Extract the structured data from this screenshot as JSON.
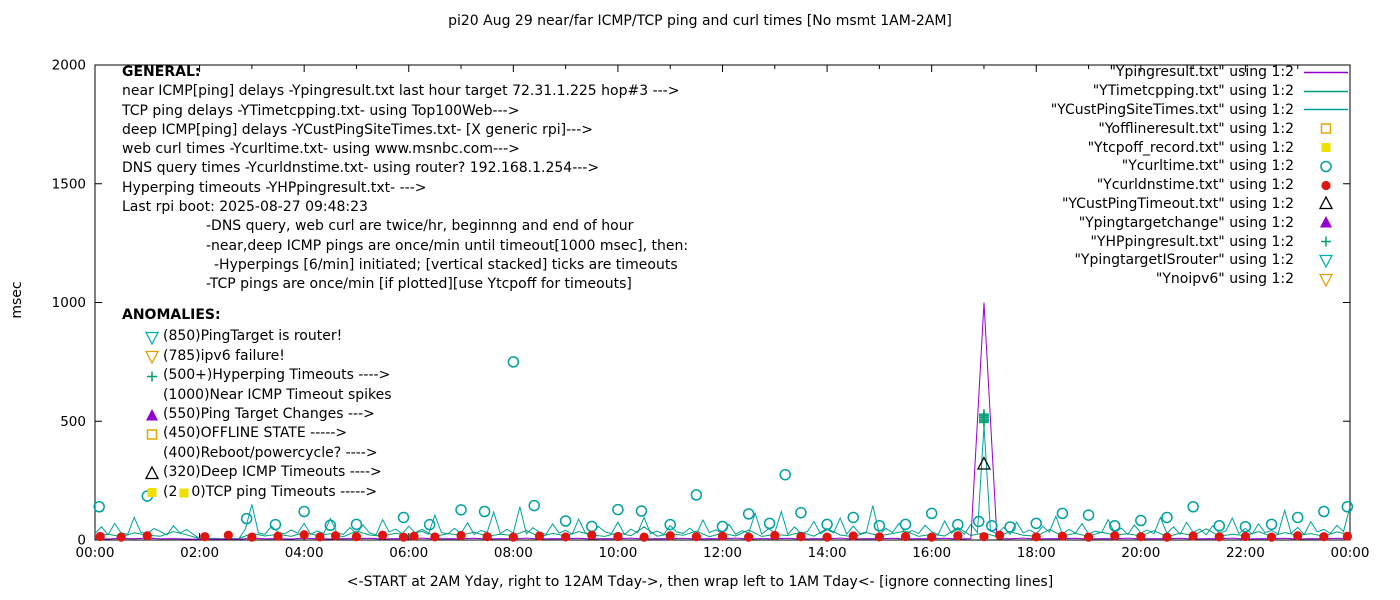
{
  "chart_data": {
    "type": "line",
    "title": "pi20 Aug 29  near/far ICMP/TCP ping and curl times [No msmt 1AM-2AM]",
    "xlabel": "<-START at 2AM Yday, right to 12AM Tday->, then wrap left to 1AM Tday<- [ignore connecting lines]",
    "ylabel": "msec",
    "xlim": [
      0,
      24
    ],
    "ylim": [
      0,
      2000
    ],
    "grid": false,
    "legend_position": "top-right",
    "x_tick_labels": [
      "00:00",
      "02:00",
      "04:00",
      "06:00",
      "08:00",
      "10:00",
      "12:00",
      "14:00",
      "16:00",
      "18:00",
      "20:00",
      "22:00",
      "00:00"
    ],
    "y_ticks": [
      0,
      500,
      1000,
      1500,
      2000
    ],
    "series": [
      {
        "name": "YCustPingSiteTimes.txt",
        "type": "line",
        "color": "#00a0a0",
        "values": [
          28,
          55,
          22,
          70,
          30,
          24,
          95,
          33,
          26,
          48,
          36,
          21,
          60,
          29,
          44,
          25,
          6,
          4,
          7,
          5,
          4,
          6,
          5,
          45,
          150,
          30,
          24,
          58,
          33,
          26,
          42,
          29,
          70,
          25,
          38,
          28,
          90,
          31,
          23,
          52,
          27,
          64,
          30,
          22,
          86,
          34,
          46,
          26,
          58,
          29,
          37,
          24,
          105,
          31,
          26,
          49,
          28,
          73,
          23,
          40,
          32,
          118,
          27,
          45,
          30,
          140,
          26,
          52,
          33,
          24,
          68,
          29,
          41,
          25,
          88,
          31,
          22,
          57,
          35,
          27,
          75,
          24,
          46,
          30,
          95,
          26,
          38,
          23,
          61,
          34,
          28,
          50,
          25,
          84,
          31,
          43,
          27,
          66,
          24,
          39,
          29,
          112,
          25,
          47,
          32,
          120,
          23,
          55,
          28,
          36,
          78,
          26,
          44,
          30,
          92,
          25,
          58,
          27,
          33,
          145,
          24,
          49,
          31,
          70,
          26,
          40,
          28,
          62,
          35,
          23,
          80,
          29,
          47,
          25,
          66,
          31,
          480,
          38,
          27,
          53,
          24,
          75,
          30,
          42,
          26,
          58,
          33,
          100,
          24,
          45,
          29,
          69,
          25,
          37,
          31,
          86,
          27,
          51,
          23,
          63,
          30,
          42,
          26,
          95,
          28,
          55,
          24,
          74,
          32,
          46,
          22,
          60,
          29,
          38,
          92,
          27,
          49,
          25,
          68,
          31,
          40,
          26,
          125,
          29,
          53,
          23,
          77,
          34,
          45,
          28,
          62,
          36,
          140
        ]
      },
      {
        "name": "YTimetcpping.txt",
        "type": "line",
        "color": "#009e73",
        "values": [
          18,
          25,
          14,
          30,
          20,
          16,
          35,
          22,
          6,
          4,
          5,
          6,
          28,
          17,
          24,
          15,
          32,
          19,
          26,
          14,
          38,
          21,
          16,
          29,
          18,
          45,
          15,
          27,
          20,
          33,
          16,
          24,
          19,
          40,
          14,
          28,
          17,
          35,
          21,
          15,
          30,
          18,
          55,
          16,
          26,
          20,
          37,
          14,
          29,
          17,
          42,
          15,
          23,
          19,
          33,
          16,
          48,
          21,
          14,
          31,
          18,
          27,
          38,
          15,
          24,
          17,
          52,
          19,
          30,
          14,
          35,
          20,
          16,
          44,
          18,
          28,
          15,
          33,
          21,
          26,
          17,
          39,
          14,
          29,
          19,
          47,
          16,
          24,
          18,
          36,
          15,
          31,
          20,
          27,
          16,
          34,
          22
        ]
      },
      {
        "name": "Ypingresult.txt",
        "type": "line",
        "color": "#9400d3",
        "values": [
          6,
          4,
          7,
          5,
          8,
          5,
          6,
          4,
          3,
          3,
          4,
          3,
          7,
          5,
          6,
          4,
          8,
          5,
          4,
          6,
          5,
          7,
          4,
          6,
          5,
          8,
          4,
          6,
          5,
          7,
          4,
          6,
          5,
          8,
          4,
          6,
          5,
          7,
          4,
          6,
          5,
          8,
          4,
          6,
          5,
          7,
          4,
          6,
          5,
          8,
          4,
          6,
          5,
          7,
          4,
          6,
          5,
          8,
          4,
          6,
          5,
          7,
          4,
          6,
          5,
          7,
          4,
          6,
          1000,
          6,
          5,
          8,
          4,
          6,
          5,
          7,
          4,
          6,
          5,
          8,
          4,
          6,
          5,
          7,
          4,
          6,
          5,
          8,
          4,
          6,
          5,
          7,
          4,
          6,
          5,
          7,
          5
        ]
      },
      {
        "name": "Ycurltime.txt",
        "type": "scatter",
        "marker": "circle-open",
        "color": "#00a0a0",
        "points": [
          [
            0.08,
            140
          ],
          [
            1.0,
            185
          ],
          [
            2.9,
            90
          ],
          [
            3.45,
            65
          ],
          [
            4.0,
            120
          ],
          [
            4.5,
            62
          ],
          [
            5.0,
            66
          ],
          [
            5.9,
            95
          ],
          [
            6.4,
            65
          ],
          [
            7.0,
            127
          ],
          [
            7.45,
            120
          ],
          [
            8.0,
            750
          ],
          [
            8.4,
            145
          ],
          [
            9.0,
            80
          ],
          [
            9.5,
            57
          ],
          [
            10.0,
            128
          ],
          [
            10.45,
            122
          ],
          [
            11.0,
            65
          ],
          [
            11.5,
            190
          ],
          [
            12.0,
            57
          ],
          [
            12.5,
            110
          ],
          [
            12.9,
            70
          ],
          [
            13.2,
            275
          ],
          [
            13.5,
            115
          ],
          [
            14.0,
            66
          ],
          [
            14.5,
            95
          ],
          [
            15.0,
            60
          ],
          [
            15.5,
            66
          ],
          [
            16.0,
            112
          ],
          [
            16.5,
            65
          ],
          [
            16.9,
            78
          ],
          [
            17.15,
            60
          ],
          [
            17.5,
            55
          ],
          [
            18.0,
            70
          ],
          [
            18.5,
            112
          ],
          [
            19.0,
            105
          ],
          [
            19.5,
            60
          ],
          [
            20.0,
            82
          ],
          [
            20.5,
            95
          ],
          [
            21.0,
            140
          ],
          [
            21.5,
            60
          ],
          [
            22.0,
            56
          ],
          [
            22.5,
            66
          ],
          [
            23.0,
            95
          ],
          [
            23.5,
            120
          ],
          [
            23.95,
            140
          ]
        ]
      },
      {
        "name": "Ycurldnstime.txt",
        "type": "scatter",
        "marker": "circle-filled",
        "color": "#e01510",
        "points": [
          [
            0.1,
            15
          ],
          [
            0.5,
            12
          ],
          [
            1.0,
            18
          ],
          [
            2.1,
            14
          ],
          [
            2.55,
            20
          ],
          [
            3.0,
            12
          ],
          [
            3.5,
            16
          ],
          [
            4.0,
            22
          ],
          [
            4.3,
            13
          ],
          [
            4.6,
            18
          ],
          [
            5.0,
            14
          ],
          [
            5.5,
            20
          ],
          [
            5.9,
            12
          ],
          [
            6.1,
            16
          ],
          [
            6.5,
            13
          ],
          [
            7.0,
            19
          ],
          [
            7.5,
            14
          ],
          [
            8.0,
            12
          ],
          [
            8.5,
            17
          ],
          [
            9.0,
            13
          ],
          [
            9.5,
            20
          ],
          [
            10.0,
            15
          ],
          [
            10.5,
            12
          ],
          [
            11.0,
            18
          ],
          [
            11.5,
            14
          ],
          [
            12.0,
            16
          ],
          [
            12.5,
            12
          ],
          [
            13.0,
            19
          ],
          [
            13.5,
            14
          ],
          [
            14.0,
            12
          ],
          [
            14.5,
            17
          ],
          [
            15.0,
            13
          ],
          [
            15.5,
            15
          ],
          [
            16.0,
            12
          ],
          [
            16.5,
            18
          ],
          [
            17.0,
            14
          ],
          [
            17.3,
            20
          ],
          [
            18.0,
            13
          ],
          [
            18.5,
            16
          ],
          [
            19.0,
            12
          ],
          [
            19.5,
            18
          ],
          [
            20.0,
            14
          ],
          [
            20.5,
            12
          ],
          [
            21.0,
            17
          ],
          [
            21.5,
            13
          ],
          [
            22.0,
            15
          ],
          [
            22.5,
            12
          ],
          [
            23.0,
            18
          ],
          [
            23.5,
            14
          ],
          [
            23.95,
            16
          ]
        ]
      },
      {
        "name": "YCustPingTimeout.txt",
        "type": "scatter",
        "marker": "triangle-up-open",
        "color": "#000000",
        "points": [
          [
            17.0,
            320
          ]
        ]
      },
      {
        "name": "YHPpingresult.txt",
        "type": "scatter",
        "marker": "plus",
        "color": "#009e73",
        "points": [
          [
            17.0,
            495
          ],
          [
            17.0,
            502
          ],
          [
            17.0,
            509
          ],
          [
            17.0,
            516
          ],
          [
            17.0,
            523
          ],
          [
            17.0,
            530
          ]
        ]
      }
    ]
  },
  "legend": [
    {
      "label": "\"Ypingresult.txt\" using 1:2",
      "sample": "line",
      "color": "#9400d3"
    },
    {
      "label": "\"YTimetcpping.txt\" using 1:2",
      "sample": "line",
      "color": "#009e73"
    },
    {
      "label": "\"YCustPingSiteTimes.txt\" using 1:2",
      "sample": "line",
      "color": "#00a0a0"
    },
    {
      "label": "\"Yofflineresult.txt\" using 1:2",
      "sample": "square-open",
      "color": "#e0a800"
    },
    {
      "label": "\"Ytcpoff_record.txt\" using 1:2",
      "sample": "square-filled",
      "color": "#efe000"
    },
    {
      "label": "\"Ycurltime.txt\" using 1:2",
      "sample": "circle-open",
      "color": "#00a0a0"
    },
    {
      "label": "\"Ycurldnstime.txt\" using 1:2",
      "sample": "circle-filled",
      "color": "#e01510"
    },
    {
      "label": "\"YCustPingTimeout.txt\" using 1:2",
      "sample": "triangle-up-open",
      "color": "#000000"
    },
    {
      "label": "\"Ypingtargetchange\" using 1:2",
      "sample": "triangle-up-filled",
      "color": "#9400d3"
    },
    {
      "label": "\"YHPpingresult.txt\" using 1:2",
      "sample": "plus",
      "color": "#009e73"
    },
    {
      "label": "\"YpingtargetISrouter\" using 1:2",
      "sample": "triangle-down-open",
      "color": "#00b0b0"
    },
    {
      "label": "\"Ynoipv6\" using 1:2",
      "sample": "triangle-down-open",
      "color": "#e69f00"
    }
  ],
  "general": {
    "heading": "GENERAL:",
    "lines": [
      {
        "text": "near ICMP[ping] delays -Ypingresult.txt last hour target 72.31.1.225 hop#3 --->",
        "indent": 0
      },
      {
        "text": "TCP ping delays -YTimetcpping.txt- using Top100Web--->",
        "indent": 0
      },
      {
        "text": "deep ICMP[ping] delays -YCustPingSiteTimes.txt- [X generic rpi]--->",
        "indent": 0
      },
      {
        "text": "web curl times -Ycurltime.txt- using www.msnbc.com--->",
        "indent": 0
      },
      {
        "text": "DNS query times -Ycurldnstime.txt- using router? 192.168.1.254--->",
        "indent": 0
      },
      {
        "text": "Hyperping timeouts -YHPpingresult.txt- --->",
        "indent": 0
      },
      {
        "text": "Last rpi boot: 2025-08-27 09:48:23",
        "indent": 0
      },
      {
        "text": "-DNS query, web curl are twice/hr, beginnng and end of hour",
        "indent": 1
      },
      {
        "text": "-near,deep ICMP pings are once/min until timeout[1000 msec], then:",
        "indent": 1
      },
      {
        "text": "-Hyperpings [6/min] initiated; [vertical stacked] ticks are timeouts",
        "indent": 2
      },
      {
        "text": "-TCP pings are once/min [if plotted][use Ytcpoff for timeouts]",
        "indent": 1
      }
    ]
  },
  "anomalies": {
    "heading": "ANOMALIES:",
    "items": [
      {
        "marker": "triangle-down-open",
        "color": "#00b0b0",
        "label": "(850)PingTarget is router!"
      },
      {
        "marker": "triangle-down-open",
        "color": "#e69f00",
        "label": "(785)ipv6 failure!"
      },
      {
        "marker": "plus",
        "color": "#009e73",
        "label": "(500+)Hyperping Timeouts ---->"
      },
      {
        "marker": "none",
        "label": "(1000)Near ICMP Timeout spikes"
      },
      {
        "marker": "triangle-up-filled",
        "color": "#9400d3",
        "label": "(550)Ping Target Changes --->"
      },
      {
        "marker": "square-open",
        "color": "#e0a800",
        "label": "(450)OFFLINE STATE ----->"
      },
      {
        "marker": "none",
        "label": "(400)Reboot/powercycle? ---->"
      },
      {
        "marker": "triangle-up-open",
        "color": "#000000",
        "label": "(320)Deep ICMP Timeouts ---->"
      },
      {
        "marker": "square-filled",
        "color": "#efe000",
        "label_pre": "(2",
        "label_post": "0)TCP ping Timeouts ----->"
      }
    ]
  }
}
